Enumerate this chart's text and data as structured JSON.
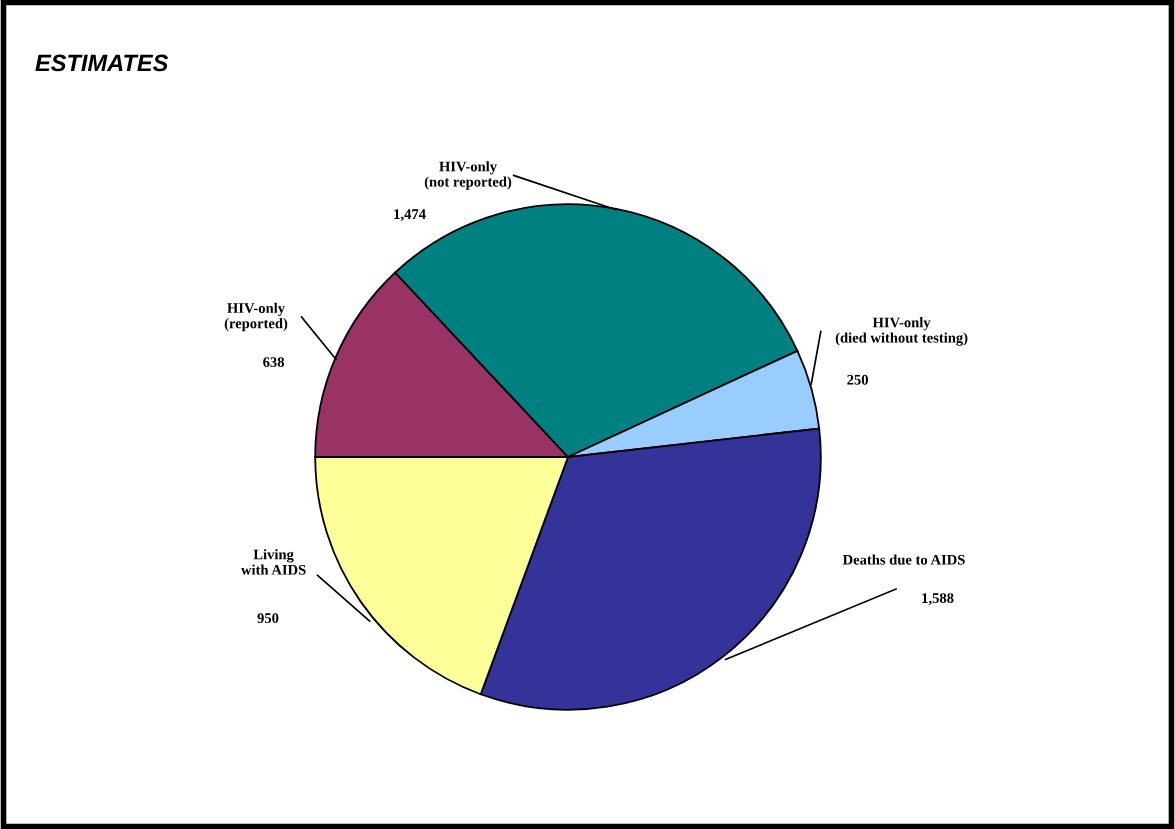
{
  "chart_data": {
    "type": "pie",
    "title": "ESTIMATES",
    "categories": [
      "HIV-only\n(reported)",
      "HIV-only\n(not reported)",
      "HIV-only\n(died without testing)",
      "Deaths due to AIDS",
      "Living\nwith AIDS"
    ],
    "values": [
      638,
      1474,
      250,
      1588,
      950
    ],
    "value_labels": [
      "638",
      "1,474",
      "250",
      "1,588",
      "950"
    ],
    "colors": [
      "#993366",
      "#008080",
      "#99ccff",
      "#333399",
      "#ffff99"
    ],
    "legend": false
  }
}
